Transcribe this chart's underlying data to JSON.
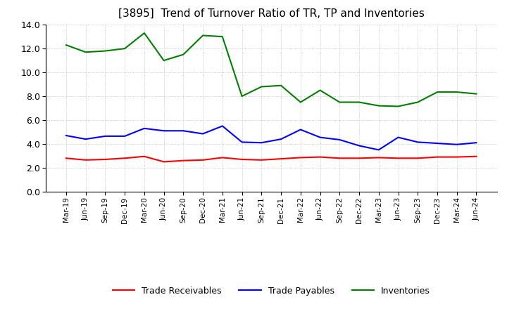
{
  "title": "[3895]  Trend of Turnover Ratio of TR, TP and Inventories",
  "ylim": [
    0,
    14.0
  ],
  "ytick_values": [
    0.0,
    2.0,
    4.0,
    6.0,
    8.0,
    10.0,
    12.0,
    14.0
  ],
  "ytick_labels": [
    "0.0",
    "2.0",
    "4.0",
    "6.0",
    "8.0",
    "10.0",
    "12.0",
    "14.0"
  ],
  "x_labels": [
    "Mar-19",
    "Jun-19",
    "Sep-19",
    "Dec-19",
    "Mar-20",
    "Jun-20",
    "Sep-20",
    "Dec-20",
    "Mar-21",
    "Jun-21",
    "Sep-21",
    "Dec-21",
    "Mar-22",
    "Jun-22",
    "Sep-22",
    "Dec-22",
    "Mar-23",
    "Jun-23",
    "Sep-23",
    "Dec-23",
    "Mar-24",
    "Jun-24"
  ],
  "trade_receivables": [
    2.8,
    2.65,
    2.7,
    2.8,
    2.95,
    2.5,
    2.6,
    2.65,
    2.85,
    2.7,
    2.65,
    2.75,
    2.85,
    2.9,
    2.8,
    2.8,
    2.85,
    2.8,
    2.8,
    2.9,
    2.9,
    2.95
  ],
  "trade_payables": [
    4.7,
    4.4,
    4.65,
    4.65,
    5.3,
    5.1,
    5.1,
    4.85,
    5.5,
    4.15,
    4.1,
    4.4,
    5.2,
    4.55,
    4.35,
    3.85,
    3.5,
    4.55,
    4.15,
    4.05,
    3.95,
    4.1
  ],
  "inventories": [
    12.3,
    11.7,
    11.8,
    12.0,
    13.3,
    11.0,
    11.5,
    13.1,
    13.0,
    8.0,
    8.8,
    8.9,
    7.5,
    8.5,
    7.5,
    7.5,
    7.2,
    7.15,
    7.5,
    8.35,
    8.35,
    8.2
  ],
  "tr_color": "#ff0000",
  "tp_color": "#0000ff",
  "inv_color": "#008000",
  "legend_labels": [
    "Trade Receivables",
    "Trade Payables",
    "Inventories"
  ],
  "background_color": "#ffffff",
  "grid_color": "#bbbbbb"
}
